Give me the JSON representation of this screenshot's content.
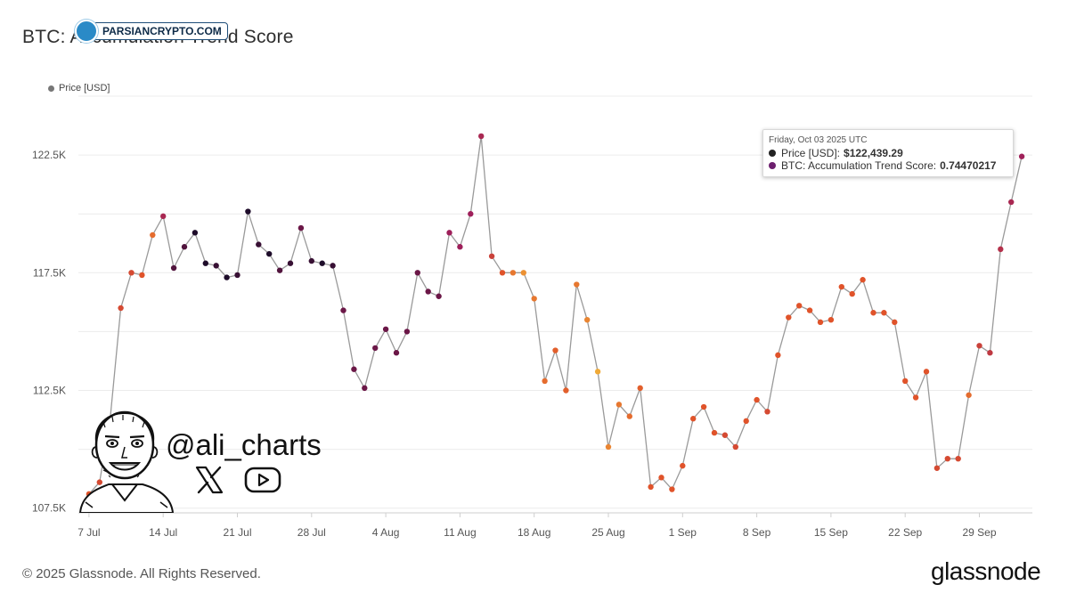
{
  "title": "BTC: Accumulation Trend Score",
  "watermark": "PARSIANCRYPTO.COM",
  "legend": {
    "label": "Price [USD]"
  },
  "tooltip": {
    "date": "Friday, Oct 03 2025 UTC",
    "price_label": "Price [USD]:",
    "price_value": "$122,439.29",
    "score_label": "BTC: Accumulation Trend Score:",
    "score_value": "0.74470217"
  },
  "author": {
    "handle": "@ali_charts",
    "icons": [
      "x-logo-icon",
      "youtube-icon"
    ]
  },
  "copyright": "© 2025 Glassnode. All Rights Reserved.",
  "brand": "glassnode",
  "colors": {
    "line": "#9a9a9a",
    "grid": "#ececec",
    "tooltip_price_dot": "#222222",
    "tooltip_score_dot": "#6d1f6e"
  },
  "chart_data": {
    "type": "line",
    "series": [
      {
        "name": "Price [USD]",
        "color_by": "BTC: Accumulation Trend Score"
      }
    ],
    "y_ticks": [
      107500,
      112500,
      117500,
      122500
    ],
    "y_tick_labels": [
      "107.5K",
      "112.5K",
      "117.5K",
      "122.5K"
    ],
    "ylim": [
      107300,
      125000
    ],
    "x_tick_labels": [
      "7 Jul",
      "14 Jul",
      "21 Jul",
      "28 Jul",
      "4 Aug",
      "11 Aug",
      "18 Aug",
      "25 Aug",
      "1 Sep",
      "8 Sep",
      "15 Sep",
      "22 Sep",
      "29 Sep"
    ],
    "xlim": [
      "2025-07-06",
      "2025-10-04"
    ],
    "grid": true,
    "legend_position": "top-left",
    "score_color_scale": {
      "low": "#f5c33b",
      "mid": "#e0532a",
      "high": "#9e1f5a",
      "max": "#1e0c2a"
    },
    "points": [
      {
        "date": "2025-07-07",
        "price": 108100,
        "score": 0.45
      },
      {
        "date": "2025-07-08",
        "price": 108600,
        "score": 0.5
      },
      {
        "date": "2025-07-09",
        "price": 111300,
        "score": 0.6
      },
      {
        "date": "2025-07-10",
        "price": 116000,
        "score": 0.5
      },
      {
        "date": "2025-07-11",
        "price": 117500,
        "score": 0.5
      },
      {
        "date": "2025-07-12",
        "price": 117400,
        "score": 0.45
      },
      {
        "date": "2025-07-13",
        "price": 119100,
        "score": 0.35
      },
      {
        "date": "2025-07-14",
        "price": 119900,
        "score": 0.7
      },
      {
        "date": "2025-07-15",
        "price": 117700,
        "score": 0.9
      },
      {
        "date": "2025-07-16",
        "price": 118600,
        "score": 0.9
      },
      {
        "date": "2025-07-17",
        "price": 119200,
        "score": 1.0
      },
      {
        "date": "2025-07-18",
        "price": 117900,
        "score": 1.0
      },
      {
        "date": "2025-07-19",
        "price": 117800,
        "score": 0.95
      },
      {
        "date": "2025-07-20",
        "price": 117300,
        "score": 1.0
      },
      {
        "date": "2025-07-21",
        "price": 117400,
        "score": 0.95
      },
      {
        "date": "2025-07-22",
        "price": 120100,
        "score": 1.0
      },
      {
        "date": "2025-07-23",
        "price": 118700,
        "score": 0.95
      },
      {
        "date": "2025-07-24",
        "price": 118300,
        "score": 1.0
      },
      {
        "date": "2025-07-25",
        "price": 117600,
        "score": 0.9
      },
      {
        "date": "2025-07-26",
        "price": 117900,
        "score": 0.95
      },
      {
        "date": "2025-07-27",
        "price": 119400,
        "score": 0.85
      },
      {
        "date": "2025-07-28",
        "price": 118000,
        "score": 0.95
      },
      {
        "date": "2025-07-29",
        "price": 117900,
        "score": 1.0
      },
      {
        "date": "2025-07-30",
        "price": 117800,
        "score": 0.95
      },
      {
        "date": "2025-07-31",
        "price": 115900,
        "score": 0.85
      },
      {
        "date": "2025-08-01",
        "price": 113400,
        "score": 0.85
      },
      {
        "date": "2025-08-02",
        "price": 112600,
        "score": 0.85
      },
      {
        "date": "2025-08-03",
        "price": 114300,
        "score": 0.85
      },
      {
        "date": "2025-08-04",
        "price": 115100,
        "score": 0.85
      },
      {
        "date": "2025-08-05",
        "price": 114100,
        "score": 0.85
      },
      {
        "date": "2025-08-06",
        "price": 115000,
        "score": 0.85
      },
      {
        "date": "2025-08-07",
        "price": 117500,
        "score": 0.85
      },
      {
        "date": "2025-08-08",
        "price": 116700,
        "score": 0.85
      },
      {
        "date": "2025-08-09",
        "price": 116500,
        "score": 0.85
      },
      {
        "date": "2025-08-10",
        "price": 119200,
        "score": 0.75
      },
      {
        "date": "2025-08-11",
        "price": 118600,
        "score": 0.75
      },
      {
        "date": "2025-08-12",
        "price": 120000,
        "score": 0.75
      },
      {
        "date": "2025-08-13",
        "price": 123300,
        "score": 0.7
      },
      {
        "date": "2025-08-14",
        "price": 118200,
        "score": 0.55
      },
      {
        "date": "2025-08-15",
        "price": 117500,
        "score": 0.45
      },
      {
        "date": "2025-08-16",
        "price": 117500,
        "score": 0.3
      },
      {
        "date": "2025-08-17",
        "price": 117500,
        "score": 0.2
      },
      {
        "date": "2025-08-18",
        "price": 116400,
        "score": 0.3
      },
      {
        "date": "2025-08-19",
        "price": 112900,
        "score": 0.35
      },
      {
        "date": "2025-08-20",
        "price": 114200,
        "score": 0.4
      },
      {
        "date": "2025-08-21",
        "price": 112500,
        "score": 0.4
      },
      {
        "date": "2025-08-22",
        "price": 117000,
        "score": 0.3
      },
      {
        "date": "2025-08-23",
        "price": 115500,
        "score": 0.25
      },
      {
        "date": "2025-08-24",
        "price": 113300,
        "score": 0.1
      },
      {
        "date": "2025-08-25",
        "price": 110100,
        "score": 0.25
      },
      {
        "date": "2025-08-26",
        "price": 111900,
        "score": 0.3
      },
      {
        "date": "2025-08-27",
        "price": 111400,
        "score": 0.35
      },
      {
        "date": "2025-08-28",
        "price": 112600,
        "score": 0.4
      },
      {
        "date": "2025-08-29",
        "price": 108400,
        "score": 0.45
      },
      {
        "date": "2025-08-30",
        "price": 108800,
        "score": 0.45
      },
      {
        "date": "2025-08-31",
        "price": 108300,
        "score": 0.45
      },
      {
        "date": "2025-09-01",
        "price": 109300,
        "score": 0.45
      },
      {
        "date": "2025-09-02",
        "price": 111300,
        "score": 0.45
      },
      {
        "date": "2025-09-03",
        "price": 111800,
        "score": 0.45
      },
      {
        "date": "2025-09-04",
        "price": 110700,
        "score": 0.45
      },
      {
        "date": "2025-09-05",
        "price": 110600,
        "score": 0.5
      },
      {
        "date": "2025-09-06",
        "price": 110100,
        "score": 0.5
      },
      {
        "date": "2025-09-07",
        "price": 111200,
        "score": 0.45
      },
      {
        "date": "2025-09-08",
        "price": 112100,
        "score": 0.45
      },
      {
        "date": "2025-09-09",
        "price": 111600,
        "score": 0.5
      },
      {
        "date": "2025-09-10",
        "price": 114000,
        "score": 0.45
      },
      {
        "date": "2025-09-11",
        "price": 115600,
        "score": 0.45
      },
      {
        "date": "2025-09-12",
        "price": 116100,
        "score": 0.45
      },
      {
        "date": "2025-09-13",
        "price": 115900,
        "score": 0.45
      },
      {
        "date": "2025-09-14",
        "price": 115400,
        "score": 0.45
      },
      {
        "date": "2025-09-15",
        "price": 115500,
        "score": 0.45
      },
      {
        "date": "2025-09-16",
        "price": 116900,
        "score": 0.45
      },
      {
        "date": "2025-09-17",
        "price": 116600,
        "score": 0.45
      },
      {
        "date": "2025-09-18",
        "price": 117200,
        "score": 0.45
      },
      {
        "date": "2025-09-19",
        "price": 115800,
        "score": 0.45
      },
      {
        "date": "2025-09-20",
        "price": 115800,
        "score": 0.45
      },
      {
        "date": "2025-09-21",
        "price": 115400,
        "score": 0.45
      },
      {
        "date": "2025-09-22",
        "price": 112900,
        "score": 0.45
      },
      {
        "date": "2025-09-23",
        "price": 112200,
        "score": 0.45
      },
      {
        "date": "2025-09-24",
        "price": 113300,
        "score": 0.45
      },
      {
        "date": "2025-09-25",
        "price": 109200,
        "score": 0.5
      },
      {
        "date": "2025-09-26",
        "price": 109600,
        "score": 0.5
      },
      {
        "date": "2025-09-27",
        "price": 109600,
        "score": 0.5
      },
      {
        "date": "2025-09-28",
        "price": 112300,
        "score": 0.35
      },
      {
        "date": "2025-09-29",
        "price": 114400,
        "score": 0.55
      },
      {
        "date": "2025-09-30",
        "price": 114100,
        "score": 0.6
      },
      {
        "date": "2025-10-01",
        "price": 118500,
        "score": 0.65
      },
      {
        "date": "2025-10-02",
        "price": 120500,
        "score": 0.7
      },
      {
        "date": "2025-10-03",
        "price": 122439.29,
        "score": 0.74470217
      }
    ]
  }
}
